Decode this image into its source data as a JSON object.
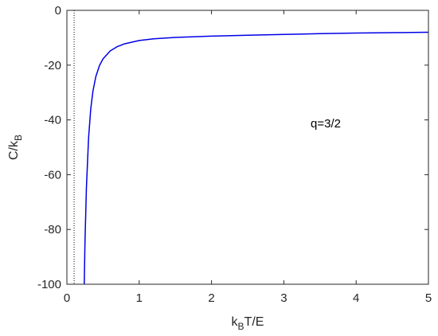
{
  "chart_data": {
    "type": "line",
    "title": "",
    "xlabel": {
      "main": "k",
      "sub": "B",
      "rest": "T/E"
    },
    "ylabel": {
      "main": "C/k",
      "sub": "B"
    },
    "xlim": [
      0,
      5
    ],
    "ylim": [
      -100,
      0
    ],
    "xticks": [
      0,
      1,
      2,
      3,
      4,
      5
    ],
    "yticks": [
      0,
      -20,
      -40,
      -60,
      -80,
      -100
    ],
    "xtick_labels": [
      "0",
      "1",
      "2",
      "3",
      "4",
      "5"
    ],
    "ytick_labels": [
      "0",
      "-20",
      "-40",
      "-60",
      "-80",
      "-100"
    ],
    "grid": false,
    "annotation": "q=3/2",
    "series": [
      {
        "color": "#0000e6",
        "x": [
          0.24,
          0.25,
          0.27,
          0.3,
          0.33,
          0.36,
          0.4,
          0.45,
          0.5,
          0.6,
          0.7,
          0.8,
          1.0,
          1.2,
          1.5,
          2.0,
          2.5,
          3.0,
          3.5,
          4.0,
          4.5,
          5.0
        ],
        "y": [
          -100,
          -84.7,
          -64.7,
          -46.5,
          -36.0,
          -29.5,
          -24.2,
          -20.2,
          -17.7,
          -14.8,
          -13.2,
          -12.2,
          -11.0,
          -10.4,
          -9.9,
          -9.4,
          -9.1,
          -8.8,
          -8.5,
          -8.3,
          -8.15,
          -8.0
        ]
      }
    ],
    "reference_line": {
      "x": 0.1,
      "style": "dotted",
      "color": "#000000"
    }
  }
}
